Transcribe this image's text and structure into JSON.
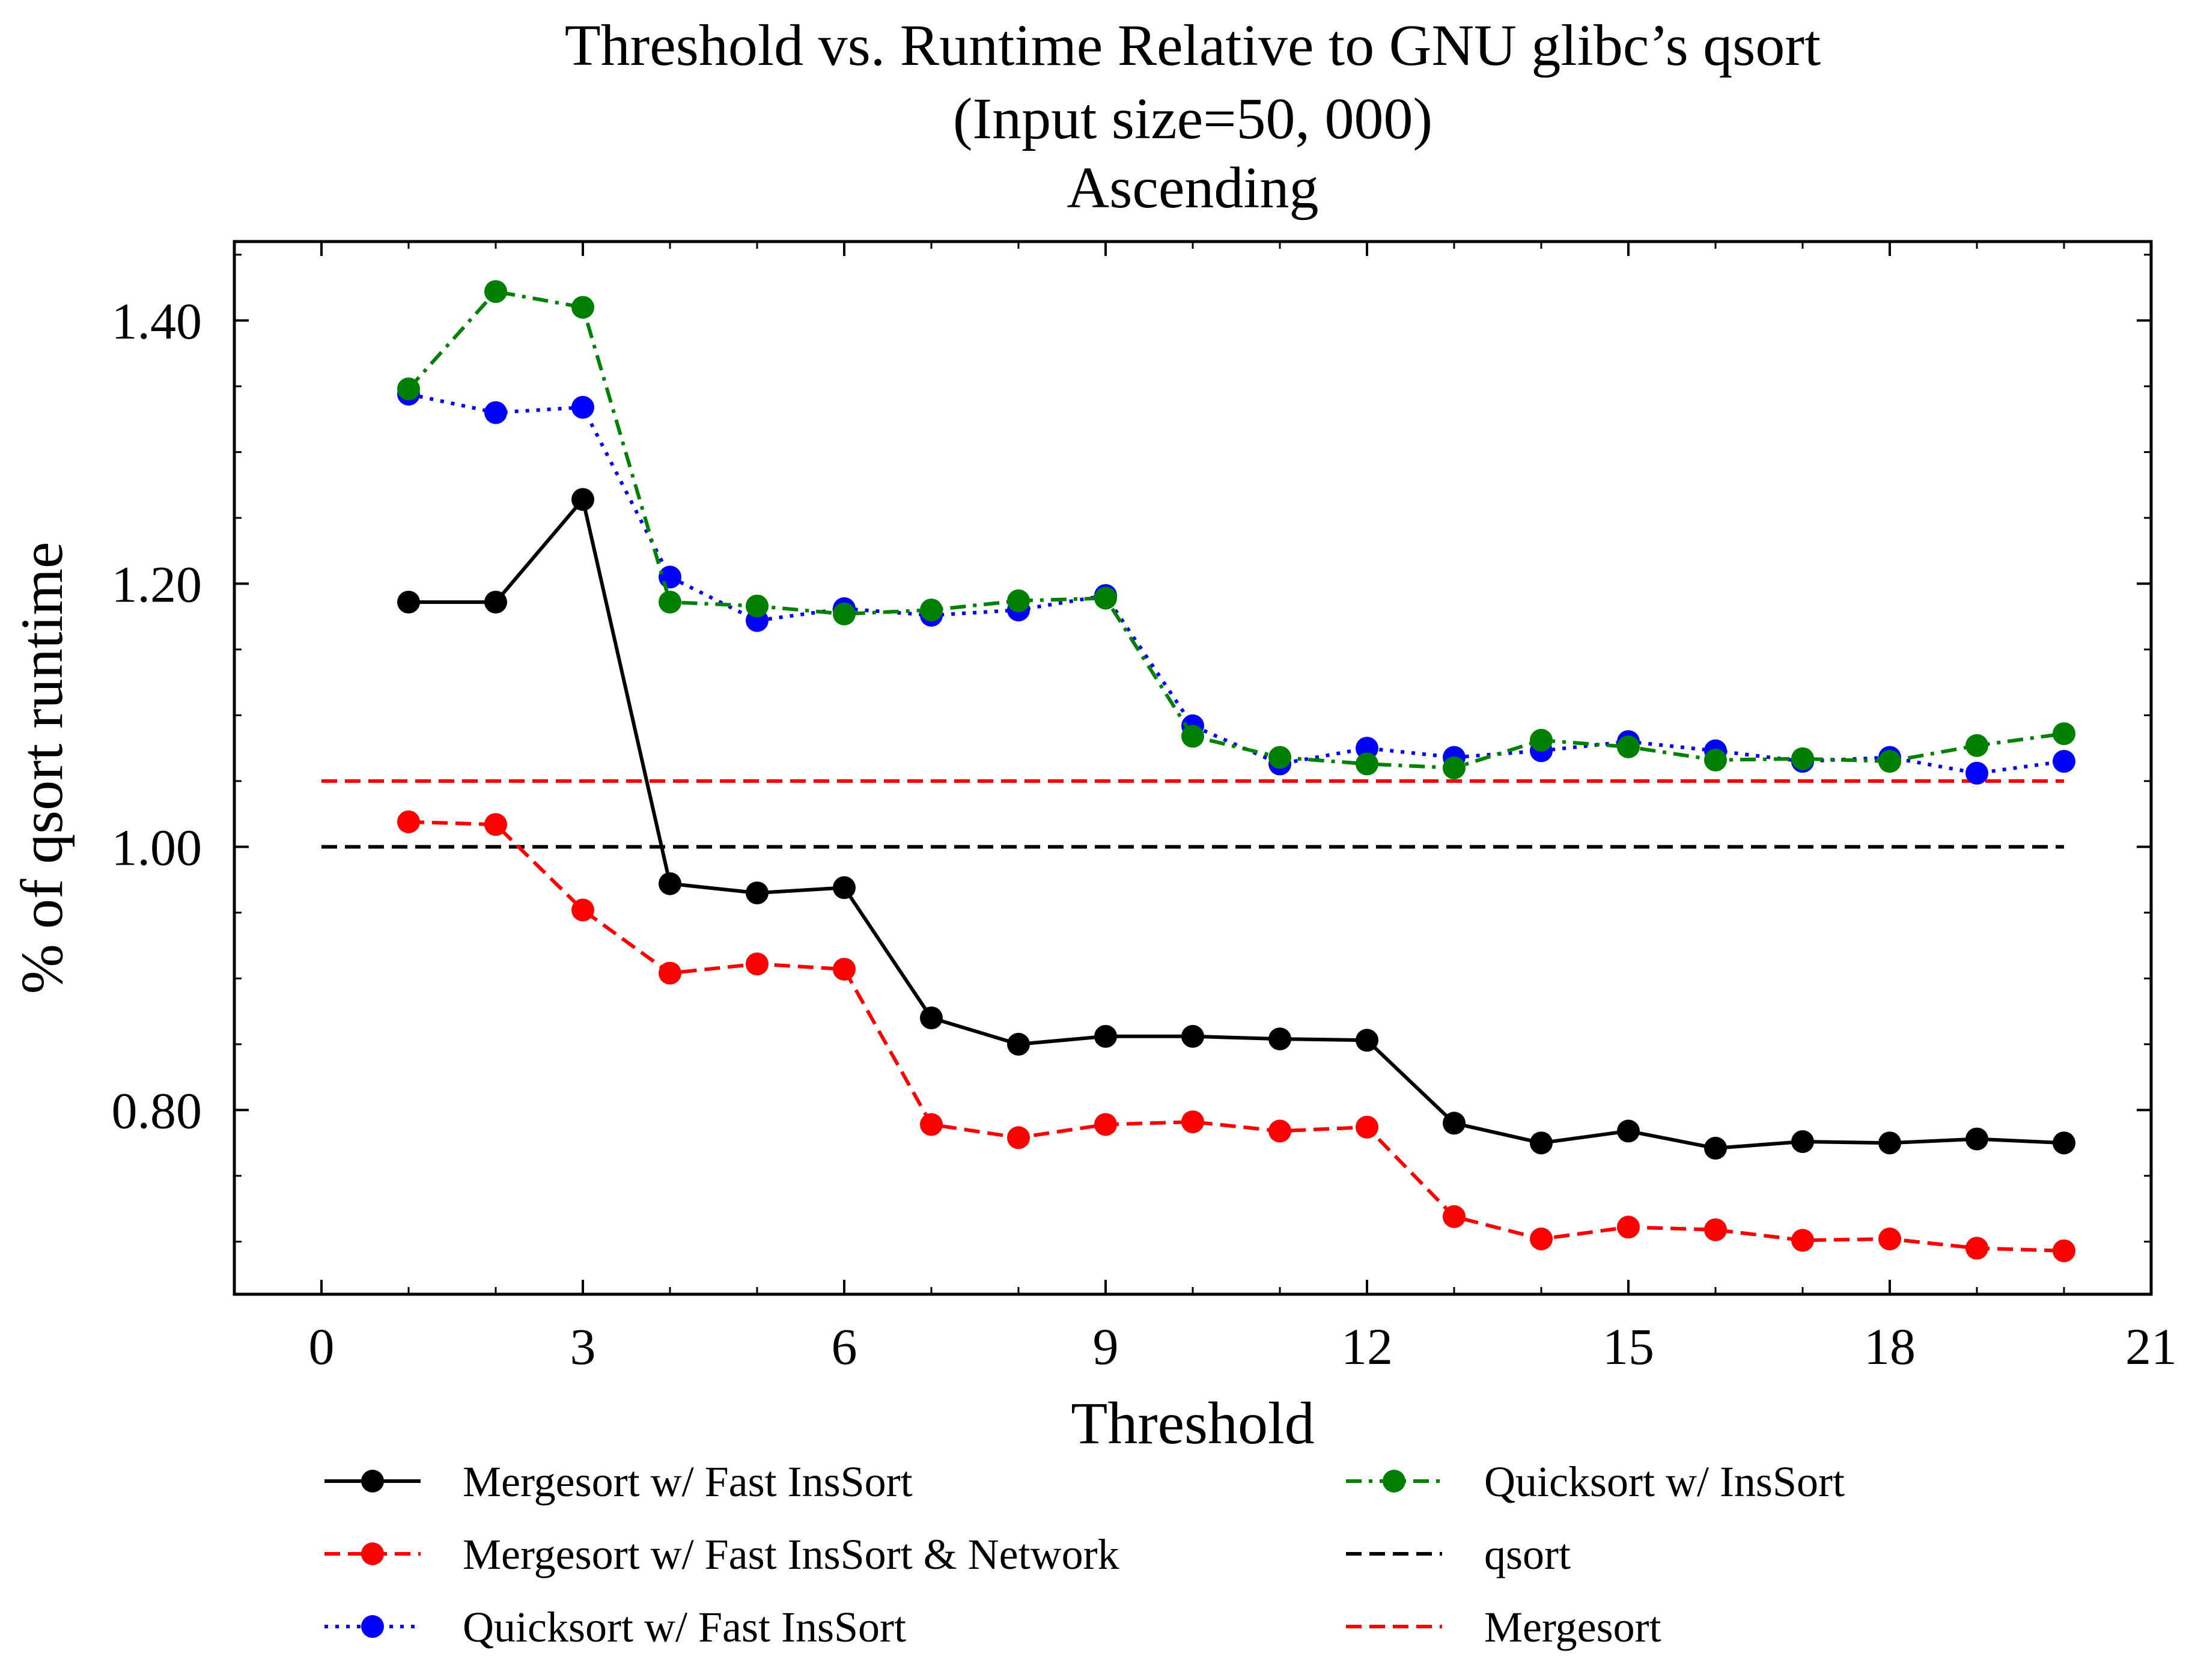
{
  "chart_data": {
    "type": "line",
    "title_lines": [
      "Threshold vs. Runtime Relative to GNU glibc’s qsort",
      "(Input size=50, 000)",
      "Ascending"
    ],
    "xlabel": "Threshold",
    "ylabel": "% of qsort runtime",
    "xlim": [
      -1,
      21
    ],
    "ylim": [
      0.66,
      1.46
    ],
    "xticks": [
      0,
      3,
      6,
      9,
      12,
      15,
      18,
      21
    ],
    "xtick_labels": [
      "0",
      "3",
      "6",
      "9",
      "12",
      "15",
      "18",
      "21"
    ],
    "yticks": [
      0.8,
      1.0,
      1.2,
      1.4
    ],
    "ytick_labels": [
      "0.80",
      "1.00",
      "1.20",
      "1.40"
    ],
    "grid": false,
    "legend_position": "bottom",
    "series": [
      {
        "name": "Mergesort w/ Fast InsSort",
        "color": "#000000",
        "dash": "solid",
        "marker": true,
        "x": [
          1,
          2,
          3,
          4,
          5,
          6,
          7,
          8,
          9,
          10,
          11,
          12,
          13,
          14,
          15,
          16,
          17,
          18,
          19,
          20
        ],
        "values": [
          1.186,
          1.186,
          1.264,
          0.972,
          0.965,
          0.969,
          0.87,
          0.85,
          0.856,
          0.856,
          0.854,
          0.853,
          0.79,
          0.775,
          0.784,
          0.771,
          0.776,
          0.775,
          0.778,
          0.775
        ]
      },
      {
        "name": "Mergesort w/ Fast InsSort & Network",
        "color": "#ff0000",
        "dash": "dashed",
        "marker": true,
        "x": [
          1,
          2,
          3,
          4,
          5,
          6,
          7,
          8,
          9,
          10,
          11,
          12,
          13,
          14,
          15,
          16,
          17,
          18,
          19,
          20
        ],
        "values": [
          1.019,
          1.017,
          0.952,
          0.904,
          0.911,
          0.907,
          0.789,
          0.779,
          0.789,
          0.791,
          0.784,
          0.787,
          0.719,
          0.702,
          0.711,
          0.709,
          0.701,
          0.702,
          0.695,
          0.693
        ]
      },
      {
        "name": "Quicksort w/ Fast InsSort",
        "color": "#0000ff",
        "dash": "dotted",
        "marker": true,
        "x": [
          1,
          2,
          3,
          4,
          5,
          6,
          7,
          8,
          9,
          10,
          11,
          12,
          13,
          14,
          15,
          16,
          17,
          18,
          19,
          20
        ],
        "values": [
          1.344,
          1.33,
          1.334,
          1.205,
          1.172,
          1.181,
          1.176,
          1.18,
          1.191,
          1.092,
          1.063,
          1.075,
          1.068,
          1.073,
          1.08,
          1.073,
          1.065,
          1.068,
          1.056,
          1.065
        ]
      },
      {
        "name": "Quicksort w/ InsSort",
        "color": "#008000",
        "dash": "dashdot",
        "marker": true,
        "x": [
          1,
          2,
          3,
          4,
          5,
          6,
          7,
          8,
          9,
          10,
          11,
          12,
          13,
          14,
          15,
          16,
          17,
          18,
          19,
          20
        ],
        "values": [
          1.348,
          1.422,
          1.41,
          1.186,
          1.183,
          1.177,
          1.18,
          1.187,
          1.189,
          1.084,
          1.068,
          1.063,
          1.06,
          1.081,
          1.076,
          1.066,
          1.067,
          1.065,
          1.077,
          1.086
        ]
      },
      {
        "name": "qsort",
        "color": "#000000",
        "dash": "dashed",
        "marker": false,
        "x": [
          0,
          20
        ],
        "values": [
          1.0,
          1.0
        ]
      },
      {
        "name": "Mergesort",
        "color": "#ff0000",
        "dash": "dashed",
        "marker": false,
        "x": [
          0,
          20
        ],
        "values": [
          1.05,
          1.05
        ]
      }
    ]
  }
}
